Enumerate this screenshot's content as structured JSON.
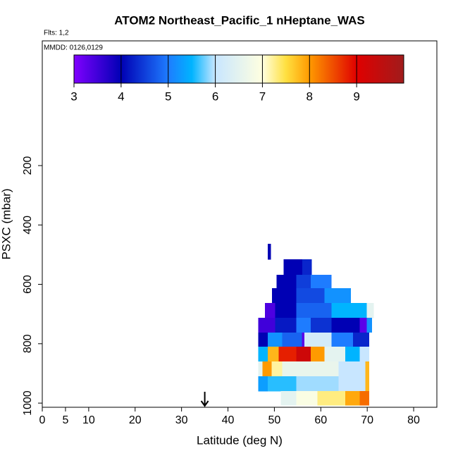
{
  "chart_data": {
    "type": "curtain",
    "title": "ATOM2 Northeast_Pacific_1 nHeptane_WAS",
    "flights_label": "Flts: 1,2",
    "dates_label": "MMDD: 0126,0129",
    "x_label": "Latitude (deg N)",
    "y_label": "PSXC (mbar)",
    "xlim": [
      0,
      85
    ],
    "xticks": [
      0,
      5,
      10,
      20,
      30,
      40,
      50,
      60,
      70,
      80
    ],
    "ylim": [
      1014,
      -220
    ],
    "yticks": [
      200,
      400,
      600,
      800,
      1000
    ],
    "colorbar_lim": [
      3,
      10
    ],
    "colorbar_ticks": [
      3,
      4,
      5,
      6,
      7,
      8,
      9
    ],
    "colorscale": [
      [
        3,
        "#8000ff"
      ],
      [
        4,
        "#0000b4"
      ],
      [
        5,
        "#1e7cff"
      ],
      [
        5.5,
        "#00b4ff"
      ],
      [
        6,
        "#c8e6ff"
      ],
      [
        7,
        "#ffffe0"
      ],
      [
        7.5,
        "#ffe040"
      ],
      [
        8,
        "#ff9a00"
      ],
      [
        9,
        "#e00000"
      ],
      [
        10,
        "#a01c1c"
      ]
    ],
    "marker_lat": 35,
    "rows": [
      {
        "pressure": [
          463,
          516
        ],
        "lat_edges": [
          48.6,
          49.2
        ],
        "values": [
          4
        ]
      },
      {
        "pressure": [
          516,
          568
        ],
        "lat_edges": [
          52,
          56,
          58
        ],
        "values": [
          4,
          4.3
        ]
      },
      {
        "pressure": [
          568,
          613
        ],
        "lat_edges": [
          50.5,
          54.7,
          57.8,
          62.3
        ],
        "values": [
          4,
          4.5,
          5
        ]
      },
      {
        "pressure": [
          613,
          663
        ],
        "lat_edges": [
          49.5,
          54.7,
          60.8,
          66.4
        ],
        "values": [
          4,
          4.6,
          5.2
        ]
      },
      {
        "pressure": [
          663,
          713
        ],
        "lat_edges": [
          48,
          50.2,
          54.7,
          62.3,
          69.9,
          71.4
        ],
        "values": [
          3.4,
          4,
          4.8,
          5.5,
          6.5
        ]
      },
      {
        "pressure": [
          713,
          762
        ],
        "lat_edges": [
          46.5,
          50.2,
          54.7,
          57.8,
          62.3,
          68.4,
          69.9,
          71
        ],
        "values": [
          3.5,
          4.2,
          5,
          4.4,
          4,
          3.3,
          5.2
        ]
      },
      {
        "pressure": [
          762,
          810
        ],
        "lat_edges": [
          46.5,
          48.6,
          51.7,
          55.9,
          56.5,
          62.3,
          66.9,
          70.4
        ],
        "values": [
          4,
          5.2,
          4.8,
          3.3,
          6.2,
          5,
          4.3
        ]
      },
      {
        "pressure": [
          810,
          860
        ],
        "lat_edges": [
          46.5,
          48.6,
          50.9,
          54.7,
          57.8,
          60.8,
          65.3,
          68.4,
          70.4
        ],
        "values": [
          5.5,
          7.8,
          8.8,
          9.3,
          8,
          6.5,
          5.5,
          6
        ]
      },
      {
        "pressure": [
          860,
          910
        ],
        "lat_edges": [
          46.5,
          47.4,
          49.4,
          51.7,
          63.8,
          69.6,
          70.4
        ],
        "values": [
          6.5,
          8,
          7.2,
          6.6,
          6,
          7.8
        ]
      },
      {
        "pressure": [
          910,
          960
        ],
        "lat_edges": [
          46.5,
          48.6,
          54.7,
          63.8,
          69.6,
          70.4
        ],
        "values": [
          5.3,
          5.6,
          5.9,
          6,
          7.8
        ]
      },
      {
        "pressure": [
          960,
          1007
        ],
        "lat_edges": [
          51.4,
          54.7,
          59.3,
          65.3,
          68.4,
          70.4
        ],
        "values": [
          6.5,
          6.9,
          7.3,
          7.9,
          8.3
        ]
      }
    ]
  }
}
